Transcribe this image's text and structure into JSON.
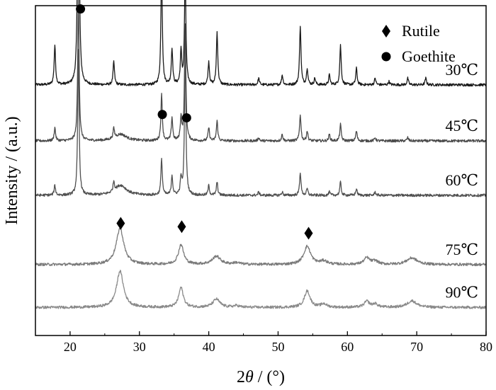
{
  "chart_data": {
    "type": "line",
    "xlabel": "2θ / (°)",
    "ylabel": "Intensity / (a.u.)",
    "xlim": [
      15,
      80
    ],
    "xticks": [
      20,
      30,
      40,
      50,
      60,
      70,
      80
    ],
    "xtick_labels": [
      "20",
      "30",
      "40",
      "50",
      "60",
      "70",
      "80"
    ],
    "y_ticks_shown": false,
    "grid": false,
    "legend": {
      "placement": "top-right",
      "entries": [
        {
          "marker": "diamond",
          "label": "Rutile"
        },
        {
          "marker": "circle",
          "label": "Goethite"
        }
      ]
    },
    "series": [
      {
        "name": "30℃",
        "color": "#1a1a1a",
        "baseline": 0.76,
        "peaks": [
          {
            "x": 17.8,
            "h": 0.12,
            "w": 0.12
          },
          {
            "x": 21.2,
            "h": 0.97,
            "w": 0.12
          },
          {
            "x": 26.3,
            "h": 0.07,
            "w": 0.12
          },
          {
            "x": 33.2,
            "h": 0.36,
            "w": 0.12
          },
          {
            "x": 34.7,
            "h": 0.11,
            "w": 0.12
          },
          {
            "x": 36.0,
            "h": 0.1,
            "w": 0.12
          },
          {
            "x": 36.6,
            "h": 0.34,
            "w": 0.12
          },
          {
            "x": 40.0,
            "h": 0.07,
            "w": 0.12
          },
          {
            "x": 41.2,
            "h": 0.16,
            "w": 0.12
          },
          {
            "x": 47.2,
            "h": 0.02,
            "w": 0.12
          },
          {
            "x": 50.6,
            "h": 0.03,
            "w": 0.12
          },
          {
            "x": 53.2,
            "h": 0.18,
            "w": 0.12
          },
          {
            "x": 54.2,
            "h": 0.05,
            "w": 0.12
          },
          {
            "x": 55.3,
            "h": 0.02,
            "w": 0.12
          },
          {
            "x": 57.4,
            "h": 0.03,
            "w": 0.12
          },
          {
            "x": 59.0,
            "h": 0.12,
            "w": 0.12
          },
          {
            "x": 61.3,
            "h": 0.05,
            "w": 0.12
          },
          {
            "x": 64.0,
            "h": 0.02,
            "w": 0.12
          },
          {
            "x": 66.0,
            "h": 0.01,
            "w": 0.12
          },
          {
            "x": 68.7,
            "h": 0.02,
            "w": 0.12
          },
          {
            "x": 71.3,
            "h": 0.02,
            "w": 0.12
          }
        ]
      },
      {
        "name": "45℃",
        "color": "#4a4a4a",
        "baseline": 0.59,
        "peaks": [
          {
            "x": 17.8,
            "h": 0.04,
            "w": 0.12
          },
          {
            "x": 21.2,
            "h": 0.44,
            "w": 0.12
          },
          {
            "x": 26.3,
            "h": 0.03,
            "w": 0.12
          },
          {
            "x": 27.3,
            "h": 0.02,
            "w": 1.0
          },
          {
            "x": 33.2,
            "h": 0.14,
            "w": 0.12
          },
          {
            "x": 34.7,
            "h": 0.07,
            "w": 0.12
          },
          {
            "x": 36.0,
            "h": 0.07,
            "w": 0.12
          },
          {
            "x": 36.6,
            "h": 0.35,
            "w": 0.12
          },
          {
            "x": 40.0,
            "h": 0.04,
            "w": 0.12
          },
          {
            "x": 41.2,
            "h": 0.06,
            "w": 0.12
          },
          {
            "x": 47.2,
            "h": 0.01,
            "w": 0.12
          },
          {
            "x": 50.6,
            "h": 0.02,
            "w": 0.12
          },
          {
            "x": 53.2,
            "h": 0.08,
            "w": 0.12
          },
          {
            "x": 54.2,
            "h": 0.03,
            "w": 0.12
          },
          {
            "x": 57.4,
            "h": 0.02,
            "w": 0.12
          },
          {
            "x": 59.0,
            "h": 0.05,
            "w": 0.12
          },
          {
            "x": 61.3,
            "h": 0.03,
            "w": 0.12
          },
          {
            "x": 64.0,
            "h": 0.01,
            "w": 0.12
          },
          {
            "x": 68.7,
            "h": 0.01,
            "w": 0.12
          }
        ]
      },
      {
        "name": "60℃",
        "color": "#505050",
        "baseline": 0.425,
        "peaks": [
          {
            "x": 17.8,
            "h": 0.03,
            "w": 0.12
          },
          {
            "x": 21.2,
            "h": 0.44,
            "w": 0.12
          },
          {
            "x": 26.3,
            "h": 0.03,
            "w": 0.12
          },
          {
            "x": 27.3,
            "h": 0.03,
            "w": 1.0
          },
          {
            "x": 33.2,
            "h": 0.11,
            "w": 0.12
          },
          {
            "x": 34.7,
            "h": 0.06,
            "w": 0.12
          },
          {
            "x": 36.0,
            "h": 0.05,
            "w": 0.12
          },
          {
            "x": 36.6,
            "h": 0.44,
            "w": 0.12
          },
          {
            "x": 40.0,
            "h": 0.03,
            "w": 0.12
          },
          {
            "x": 41.2,
            "h": 0.04,
            "w": 0.12
          },
          {
            "x": 47.2,
            "h": 0.01,
            "w": 0.12
          },
          {
            "x": 50.6,
            "h": 0.01,
            "w": 0.12
          },
          {
            "x": 53.2,
            "h": 0.07,
            "w": 0.12
          },
          {
            "x": 54.2,
            "h": 0.02,
            "w": 0.12
          },
          {
            "x": 57.4,
            "h": 0.01,
            "w": 0.12
          },
          {
            "x": 59.0,
            "h": 0.04,
            "w": 0.12
          },
          {
            "x": 61.3,
            "h": 0.02,
            "w": 0.12
          },
          {
            "x": 64.0,
            "h": 0.01,
            "w": 0.12
          }
        ]
      },
      {
        "name": "75℃",
        "color": "#7a7a7a",
        "baseline": 0.215,
        "peaks": [
          {
            "x": 27.2,
            "h": 0.11,
            "w": 0.65
          },
          {
            "x": 36.0,
            "h": 0.06,
            "w": 0.45
          },
          {
            "x": 41.1,
            "h": 0.025,
            "w": 0.7
          },
          {
            "x": 44.0,
            "h": 0.005,
            "w": 0.6
          },
          {
            "x": 54.2,
            "h": 0.055,
            "w": 0.6
          },
          {
            "x": 56.6,
            "h": 0.01,
            "w": 0.6
          },
          {
            "x": 62.8,
            "h": 0.02,
            "w": 0.5
          },
          {
            "x": 64.0,
            "h": 0.01,
            "w": 0.5
          },
          {
            "x": 69.3,
            "h": 0.02,
            "w": 0.9
          }
        ]
      },
      {
        "name": "90℃",
        "color": "#8a8a8a",
        "baseline": 0.085,
        "peaks": [
          {
            "x": 27.2,
            "h": 0.11,
            "w": 0.6
          },
          {
            "x": 36.0,
            "h": 0.06,
            "w": 0.4
          },
          {
            "x": 41.1,
            "h": 0.025,
            "w": 0.6
          },
          {
            "x": 44.0,
            "h": 0.005,
            "w": 0.5
          },
          {
            "x": 54.2,
            "h": 0.05,
            "w": 0.5
          },
          {
            "x": 56.6,
            "h": 0.01,
            "w": 0.5
          },
          {
            "x": 62.8,
            "h": 0.018,
            "w": 0.45
          },
          {
            "x": 64.0,
            "h": 0.01,
            "w": 0.45
          },
          {
            "x": 69.3,
            "h": 0.02,
            "w": 0.8
          }
        ]
      }
    ],
    "annotations": [
      {
        "marker": "circle",
        "x": 21.5,
        "y": 0.99
      },
      {
        "marker": "circle",
        "x": 33.3,
        "y": 0.67
      },
      {
        "marker": "circle",
        "x": 36.8,
        "y": 0.66
      },
      {
        "marker": "diamond",
        "x": 27.3,
        "y": 0.34
      },
      {
        "marker": "diamond",
        "x": 36.1,
        "y": 0.33
      },
      {
        "marker": "diamond",
        "x": 54.4,
        "y": 0.31
      }
    ]
  }
}
